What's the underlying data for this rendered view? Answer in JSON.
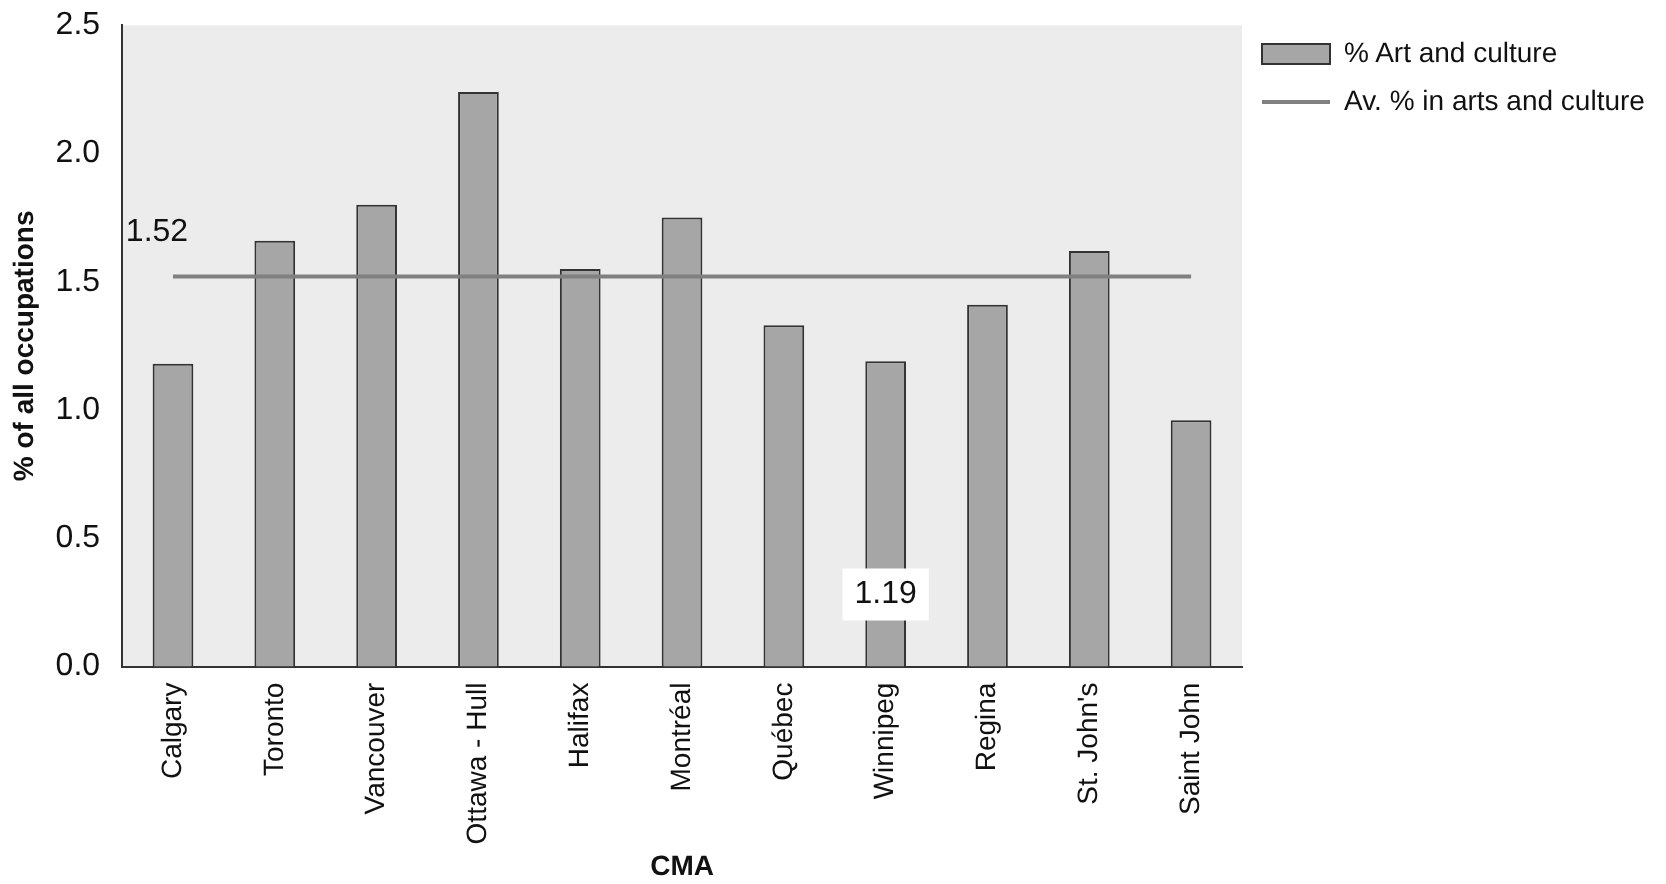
{
  "chart_data": {
    "type": "bar",
    "xlabel": "CMA",
    "ylabel": "% of all occupations",
    "categories": [
      "Calgary",
      "Toronto",
      "Vancouver",
      "Ottawa - Hull",
      "Halifax",
      "Montréal",
      "Québec",
      "Winnipeg",
      "Regina",
      "St. John's",
      "Saint John"
    ],
    "series": [
      {
        "name": "% Art and culture",
        "color": "#a6a6a6",
        "values": [
          1.18,
          1.66,
          1.8,
          2.24,
          1.55,
          1.75,
          1.33,
          1.19,
          1.41,
          1.62,
          0.96
        ],
        "value_labels": [
          null,
          null,
          null,
          null,
          null,
          null,
          null,
          "1.19",
          null,
          null,
          null
        ]
      },
      {
        "name": "Av. % in arts and culture",
        "type": "line",
        "color": "#808080",
        "values": [
          1.52,
          1.52,
          1.52,
          1.52,
          1.52,
          1.52,
          1.52,
          1.52,
          1.52,
          1.52,
          1.52
        ],
        "value_labels": [
          "1.52",
          null,
          null,
          null,
          null,
          null,
          null,
          null,
          null,
          null,
          null
        ]
      }
    ],
    "ylim": [
      0,
      2.5
    ],
    "yticks": [
      {
        "value": 0,
        "label": "0.0"
      },
      0.5,
      {
        "value": 1,
        "label": "1.0"
      },
      1.5,
      {
        "value": 2,
        "label": "2.0"
      },
      2.5
    ],
    "grid": false,
    "legend": "top right",
    "marker": "none"
  }
}
